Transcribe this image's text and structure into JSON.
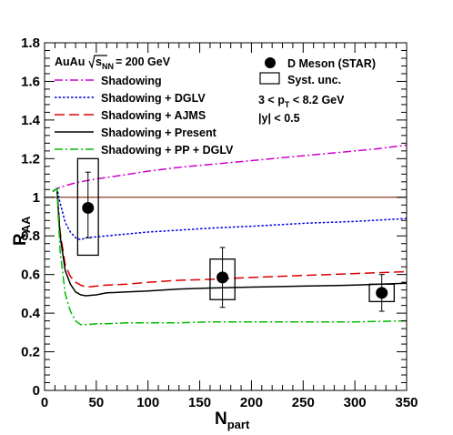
{
  "chart_data": {
    "type": "line",
    "xlabel": "N",
    "xlabel_sub": "part",
    "ylabel": "R",
    "ylabel_sub": "AA",
    "xlim": [
      0,
      350
    ],
    "ylim": [
      0,
      1.8
    ],
    "xticks": [
      0,
      50,
      100,
      150,
      200,
      250,
      300,
      350
    ],
    "yticks": [
      0,
      0.2,
      0.4,
      0.6,
      0.8,
      1,
      1.2,
      1.4,
      1.6,
      1.8
    ],
    "ytick_labels": [
      "0",
      "0.2",
      "0.4",
      "0.6",
      "0.8",
      "1",
      "1.2",
      "1.4",
      "1.6",
      "1.8"
    ],
    "grid": false,
    "reference_line": {
      "y": 1.0,
      "color": "#8b3a2a"
    },
    "system": {
      "label": "AuAu",
      "energy": "= 200 GeV",
      "sqrt_label": "s",
      "sqrt_sub": "NN"
    },
    "series": [
      {
        "name": "Shadowing",
        "color": "#cc00cc",
        "dash": "dashdot",
        "x": [
          8,
          12,
          20,
          30,
          40,
          50,
          70,
          100,
          130,
          160,
          200,
          240,
          280,
          320,
          350
        ],
        "y": [
          1.03,
          1.045,
          1.06,
          1.075,
          1.085,
          1.095,
          1.11,
          1.135,
          1.155,
          1.17,
          1.19,
          1.21,
          1.23,
          1.25,
          1.27
        ]
      },
      {
        "name": "Shadowing + DGLV",
        "color": "#0000dd",
        "dash": "dotted",
        "x": [
          8,
          12,
          15,
          20,
          25,
          30,
          35,
          40,
          50,
          60,
          80,
          100,
          130,
          160,
          200,
          250,
          300,
          350
        ],
        "y": [
          1.03,
          1.045,
          0.97,
          0.87,
          0.82,
          0.79,
          0.78,
          0.79,
          0.795,
          0.8,
          0.81,
          0.82,
          0.83,
          0.84,
          0.85,
          0.865,
          0.875,
          0.89
        ]
      },
      {
        "name": "Shadowing + AJMS",
        "color": "#dd0000",
        "dash": "longdash",
        "x": [
          8,
          12,
          15,
          20,
          25,
          30,
          35,
          40,
          50,
          60,
          80,
          100,
          130,
          160,
          200,
          250,
          300,
          350
        ],
        "y": [
          1.03,
          1.045,
          0.82,
          0.65,
          0.59,
          0.56,
          0.545,
          0.535,
          0.54,
          0.545,
          0.55,
          0.56,
          0.57,
          0.575,
          0.585,
          0.595,
          0.605,
          0.615
        ]
      },
      {
        "name": "Shadowing + Present",
        "color": "#000000",
        "dash": "solid",
        "x": [
          8,
          12,
          15,
          20,
          25,
          30,
          35,
          40,
          50,
          60,
          80,
          100,
          130,
          160,
          200,
          250,
          300,
          350
        ],
        "y": [
          1.03,
          1.045,
          0.8,
          0.62,
          0.55,
          0.51,
          0.495,
          0.49,
          0.495,
          0.505,
          0.51,
          0.515,
          0.525,
          0.53,
          0.535,
          0.54,
          0.545,
          0.555
        ]
      },
      {
        "name": "Shadowing + PP + DGLV",
        "color": "#00bb00",
        "dash": "dashdot",
        "x": [
          8,
          12,
          15,
          20,
          25,
          30,
          35,
          40,
          50,
          60,
          80,
          100,
          130,
          160,
          200,
          250,
          300,
          350
        ],
        "y": [
          1.03,
          1.045,
          0.72,
          0.5,
          0.41,
          0.36,
          0.34,
          0.34,
          0.345,
          0.345,
          0.35,
          0.35,
          0.35,
          0.355,
          0.355,
          0.355,
          0.355,
          0.36
        ]
      }
    ],
    "data_series": {
      "name": "D Meson (STAR)",
      "points": [
        {
          "x": 42,
          "y": 0.945,
          "stat_lo": 0.79,
          "stat_hi": 1.13,
          "sys_lo": 0.7,
          "sys_hi": 1.2,
          "sys_x_half": 10
        },
        {
          "x": 172,
          "y": 0.585,
          "stat_lo": 0.43,
          "stat_hi": 0.74,
          "sys_lo": 0.47,
          "sys_hi": 0.68,
          "sys_x_half": 12
        },
        {
          "x": 326,
          "y": 0.505,
          "stat_lo": 0.41,
          "stat_hi": 0.6,
          "sys_lo": 0.46,
          "sys_hi": 0.55,
          "sys_x_half": 12
        }
      ]
    },
    "legend": {
      "placement": "top",
      "marker_label": "D Meson (STAR)",
      "syst_label": "Syst. unc.",
      "kin_prefix": "3 < p",
      "kin_sub": "T",
      "kin_suffix": " < 8.2 GeV",
      "rapidity": "|y| < 0.5"
    }
  }
}
